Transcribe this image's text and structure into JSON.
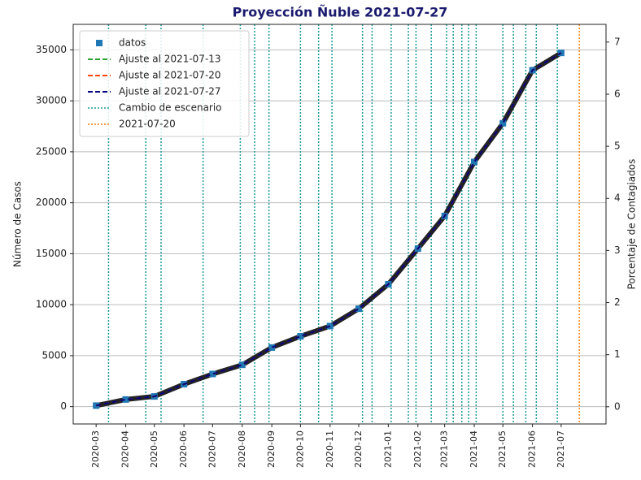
{
  "chart_data": {
    "type": "line",
    "title": "Proyección Ñuble 2021-07-27",
    "ylabel": "Número de Casos",
    "y2label": "Porcentaje de Contagiados",
    "x": [
      "2020-03",
      "2020-04",
      "2020-05",
      "2020-06",
      "2020-07",
      "2020-08",
      "2020-09",
      "2020-10",
      "2020-11",
      "2020-12",
      "2021-01",
      "2021-02",
      "2021-03",
      "2021-04",
      "2021-05",
      "2021-06",
      "2021-07"
    ],
    "xticks": [
      "2020-03",
      "2020-04",
      "2020-05",
      "2020-06",
      "2020-07",
      "2020-08",
      "2020-09",
      "2020-10",
      "2020-11",
      "2020-12",
      "2021-01",
      "2021-02",
      "2021-03",
      "2021-04",
      "2021-05",
      "2021-06",
      "2021-07"
    ],
    "xlim": [
      "2020-02-06",
      "2021-08-17"
    ],
    "series": [
      {
        "name": "datos",
        "color": "#1f77b4",
        "style": "square",
        "values": [
          100,
          700,
          1000,
          2200,
          3200,
          4100,
          5800,
          6900,
          7900,
          9600,
          12000,
          15500,
          18700,
          24000,
          27800,
          33000,
          34700
        ]
      },
      {
        "name": "Ajuste al 2021-07-13",
        "color": "#2ca02c",
        "style": "dashed",
        "values": [
          100,
          700,
          1000,
          2200,
          3200,
          4100,
          5800,
          6900,
          7900,
          9600,
          12000,
          15500,
          18700,
          24000,
          27800,
          33000,
          34700
        ]
      },
      {
        "name": "Ajuste al 2021-07-20",
        "color": "#ff4500",
        "style": "dashed",
        "values": [
          100,
          700,
          1000,
          2200,
          3200,
          4100,
          5800,
          6900,
          7900,
          9600,
          12000,
          15500,
          18700,
          24000,
          27800,
          33000,
          34700
        ]
      },
      {
        "name": "Ajuste al 2021-07-27",
        "color": "#000080",
        "style": "dashed",
        "values": [
          100,
          700,
          1000,
          2200,
          3200,
          4100,
          5800,
          6900,
          7900,
          9600,
          12000,
          15500,
          18700,
          24000,
          27800,
          33000,
          34700
        ]
      }
    ],
    "vlines": [
      {
        "name": "Cambio de escenario",
        "color": "#1a9a9a",
        "dates": [
          "2020-03-14",
          "2020-04-22",
          "2020-05-08",
          "2020-06-21",
          "2020-07-30",
          "2020-08-14",
          "2020-08-29",
          "2020-10-01",
          "2020-10-20",
          "2020-11-03",
          "2020-12-05",
          "2020-12-15",
          "2021-01-04",
          "2021-01-22",
          "2021-01-30",
          "2021-02-15",
          "2021-03-03",
          "2021-03-10",
          "2021-03-19",
          "2021-03-26",
          "2021-04-03",
          "2021-05-01",
          "2021-05-12",
          "2021-05-25",
          "2021-06-05",
          "2021-06-27"
        ]
      },
      {
        "name": "2021-07-20",
        "color": "#ff7f0e",
        "dates": [
          "2021-07-20"
        ]
      }
    ],
    "ylim": [
      -1700,
      37500
    ],
    "yticks": [
      0,
      5000,
      10000,
      15000,
      20000,
      25000,
      30000,
      35000
    ],
    "y2lim": [
      -0.33,
      7.34
    ],
    "y2ticks": [
      0,
      1,
      2,
      3,
      4,
      5,
      6,
      7
    ],
    "grid": true,
    "legend": "upper left"
  }
}
